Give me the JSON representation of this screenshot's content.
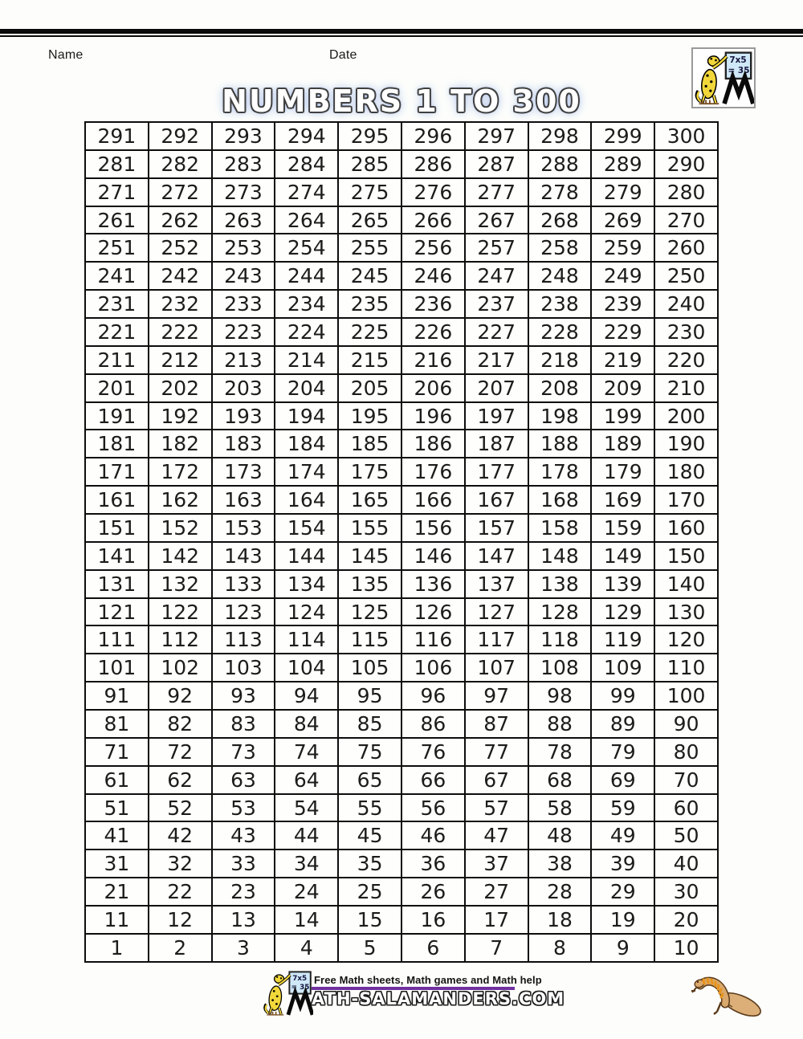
{
  "header": {
    "name_label": "Name",
    "date_label": "Date"
  },
  "title": "NUMBERS 1 TO 300",
  "logo": {
    "board_line1": "7x5",
    "board_line2": "= 35"
  },
  "grid": {
    "rows": [
      [
        291,
        292,
        293,
        294,
        295,
        296,
        297,
        298,
        299,
        300
      ],
      [
        281,
        282,
        283,
        284,
        285,
        286,
        287,
        288,
        289,
        290
      ],
      [
        271,
        272,
        273,
        274,
        275,
        276,
        277,
        278,
        279,
        280
      ],
      [
        261,
        262,
        263,
        264,
        265,
        266,
        267,
        268,
        269,
        270
      ],
      [
        251,
        252,
        253,
        254,
        255,
        256,
        257,
        258,
        259,
        260
      ],
      [
        241,
        242,
        243,
        244,
        245,
        246,
        247,
        248,
        249,
        250
      ],
      [
        231,
        232,
        233,
        234,
        235,
        236,
        237,
        238,
        239,
        240
      ],
      [
        221,
        222,
        223,
        224,
        225,
        226,
        227,
        228,
        229,
        230
      ],
      [
        211,
        212,
        213,
        214,
        215,
        216,
        217,
        218,
        219,
        220
      ],
      [
        201,
        202,
        203,
        204,
        205,
        206,
        207,
        208,
        209,
        210
      ],
      [
        191,
        192,
        193,
        194,
        195,
        196,
        197,
        198,
        199,
        200
      ],
      [
        181,
        182,
        183,
        184,
        185,
        186,
        187,
        188,
        189,
        190
      ],
      [
        171,
        172,
        173,
        174,
        175,
        176,
        177,
        178,
        179,
        180
      ],
      [
        161,
        162,
        163,
        164,
        165,
        166,
        167,
        168,
        169,
        170
      ],
      [
        151,
        152,
        153,
        154,
        155,
        156,
        157,
        158,
        159,
        160
      ],
      [
        141,
        142,
        143,
        144,
        145,
        146,
        147,
        148,
        149,
        150
      ],
      [
        131,
        132,
        133,
        134,
        135,
        136,
        137,
        138,
        139,
        140
      ],
      [
        121,
        122,
        123,
        124,
        125,
        126,
        127,
        128,
        129,
        130
      ],
      [
        111,
        112,
        113,
        114,
        115,
        116,
        117,
        118,
        119,
        120
      ],
      [
        101,
        102,
        103,
        104,
        105,
        106,
        107,
        108,
        109,
        110
      ],
      [
        91,
        92,
        93,
        94,
        95,
        96,
        97,
        98,
        99,
        100
      ],
      [
        81,
        82,
        83,
        84,
        85,
        86,
        87,
        88,
        89,
        90
      ],
      [
        71,
        72,
        73,
        74,
        75,
        76,
        77,
        78,
        79,
        80
      ],
      [
        61,
        62,
        63,
        64,
        65,
        66,
        67,
        68,
        69,
        70
      ],
      [
        51,
        52,
        53,
        54,
        55,
        56,
        57,
        58,
        59,
        60
      ],
      [
        41,
        42,
        43,
        44,
        45,
        46,
        47,
        48,
        49,
        50
      ],
      [
        31,
        32,
        33,
        34,
        35,
        36,
        37,
        38,
        39,
        40
      ],
      [
        21,
        22,
        23,
        24,
        25,
        26,
        27,
        28,
        29,
        30
      ],
      [
        11,
        12,
        13,
        14,
        15,
        16,
        17,
        18,
        19,
        20
      ],
      [
        1,
        2,
        3,
        4,
        5,
        6,
        7,
        8,
        9,
        10
      ]
    ]
  },
  "footer": {
    "tagline": "Free Math sheets, Math games and Math help",
    "site_text": "ATH-SALAMANDERS.COM",
    "rule_color": "#7030a0"
  }
}
